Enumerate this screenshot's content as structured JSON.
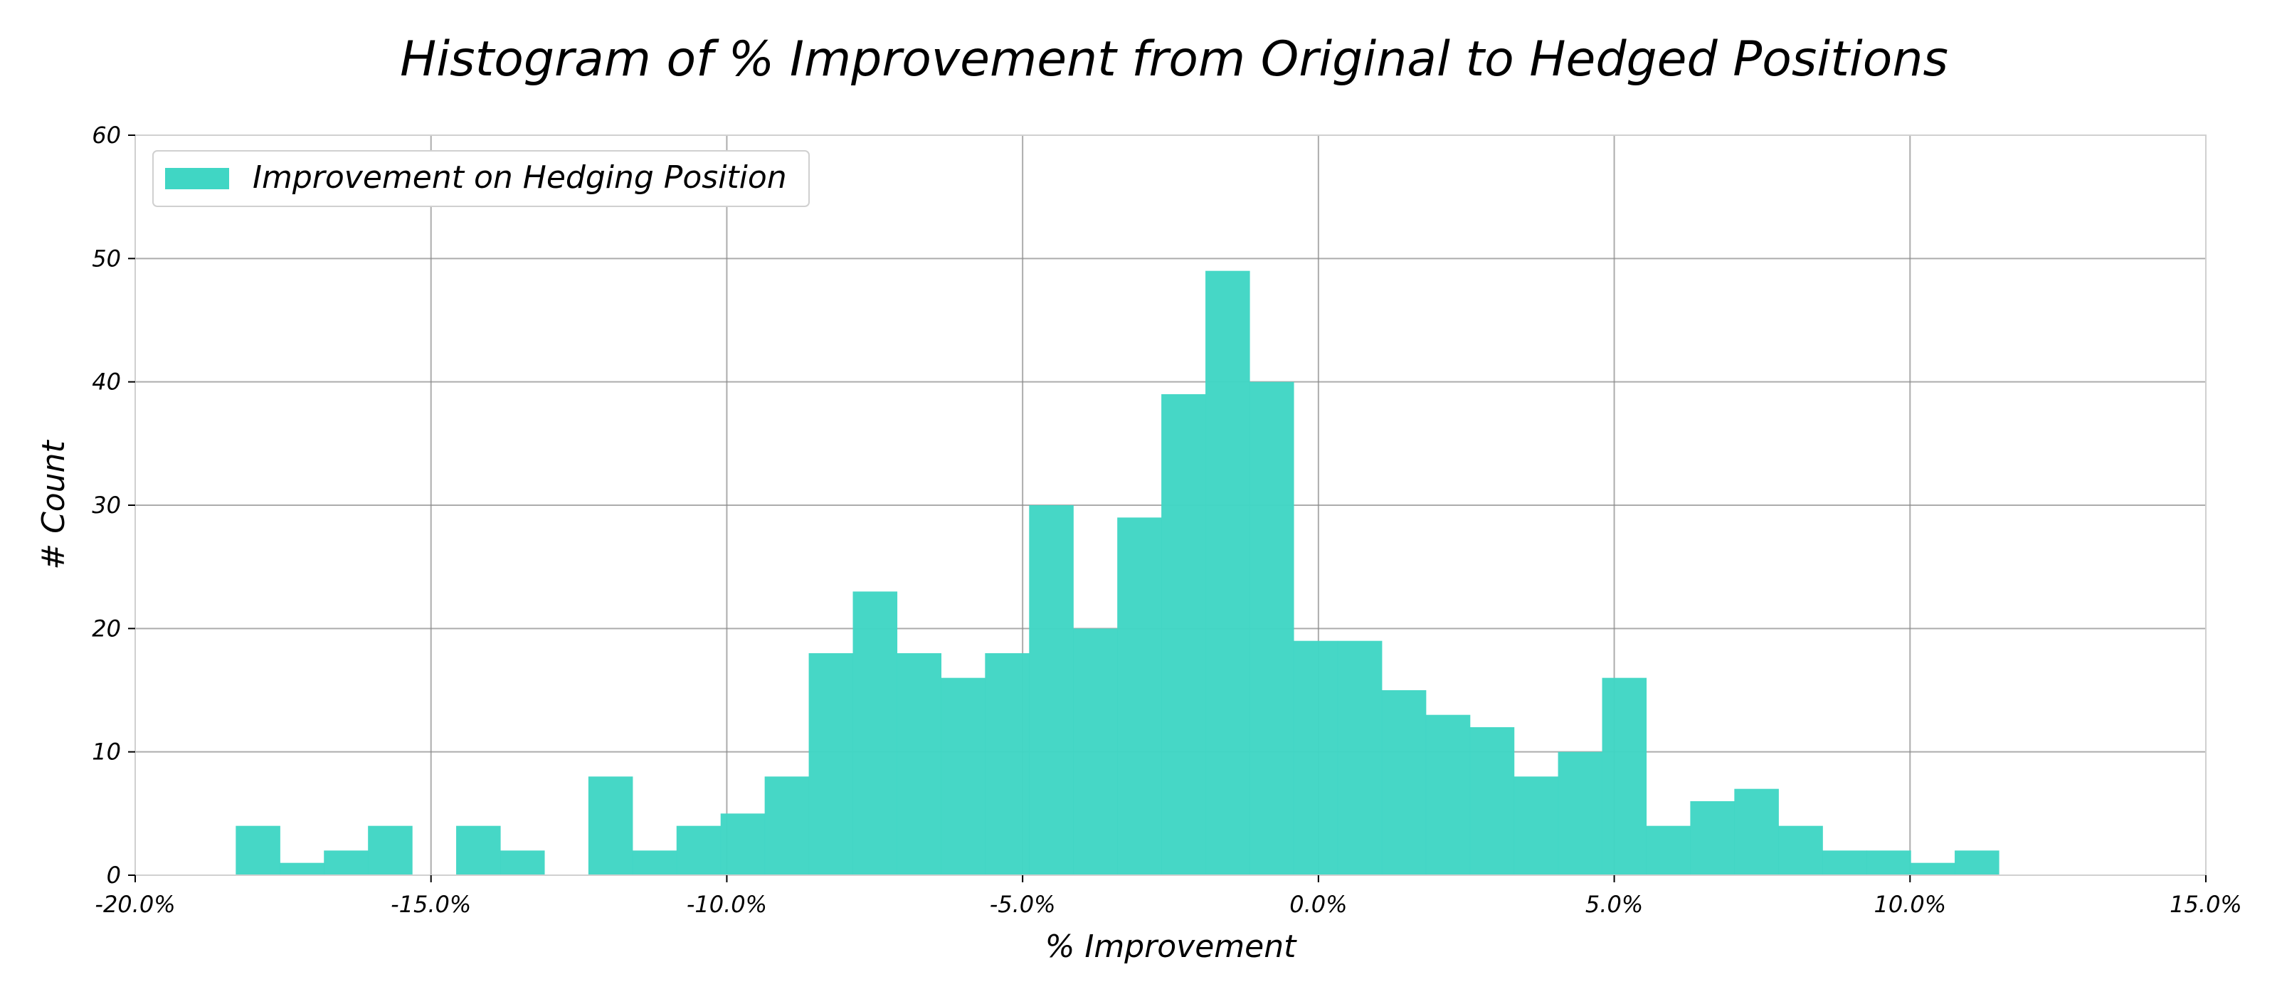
{
  "chart_data": {
    "type": "bar",
    "title": "Histogram of % Improvement from Original to Hedged Positions",
    "xlabel": "% Improvement",
    "ylabel": "# Count",
    "xlim": [
      -20.0,
      15.0
    ],
    "ylim": [
      0,
      60
    ],
    "bin_width": 0.745,
    "bin_starts": [
      -18.3,
      -17.555,
      -16.81,
      -16.065,
      -15.32,
      -14.575,
      -13.83,
      -13.085,
      -12.34,
      -11.595,
      -10.85,
      -10.105,
      -9.36,
      -8.615,
      -7.87,
      -7.125,
      -6.38,
      -5.635,
      -4.89,
      -4.145,
      -3.4,
      -2.655,
      -1.91,
      -1.165,
      -0.42,
      0.325,
      1.07,
      1.815,
      2.56,
      3.305,
      4.05,
      4.795,
      5.54,
      6.285,
      7.03,
      7.775,
      8.52,
      9.265,
      10.01,
      10.755
    ],
    "values": [
      4,
      1,
      2,
      4,
      0,
      4,
      2,
      0,
      8,
      2,
      4,
      5,
      8,
      18,
      23,
      18,
      16,
      18,
      30,
      20,
      29,
      39,
      49,
      40,
      19,
      19,
      15,
      13,
      12,
      8,
      10,
      16,
      4,
      6,
      7,
      4,
      2,
      2,
      1,
      2
    ],
    "x_ticks": [
      -20,
      -15,
      -10,
      -5,
      0,
      5,
      10,
      15
    ],
    "x_tick_labels": [
      "-20.0%",
      "-15.0%",
      "-10.0%",
      "-5.0%",
      "0.0%",
      "5.0%",
      "10.0%",
      "15.0%"
    ],
    "y_ticks": [
      0,
      10,
      20,
      30,
      40,
      50,
      60
    ],
    "y_tick_labels": [
      "0",
      "10",
      "20",
      "30",
      "40",
      "50",
      "60"
    ],
    "series": [
      {
        "name": "Improvement on Hedging Position",
        "color": "#40d6c4"
      }
    ],
    "grid": true,
    "legend_position": "upper-left"
  }
}
